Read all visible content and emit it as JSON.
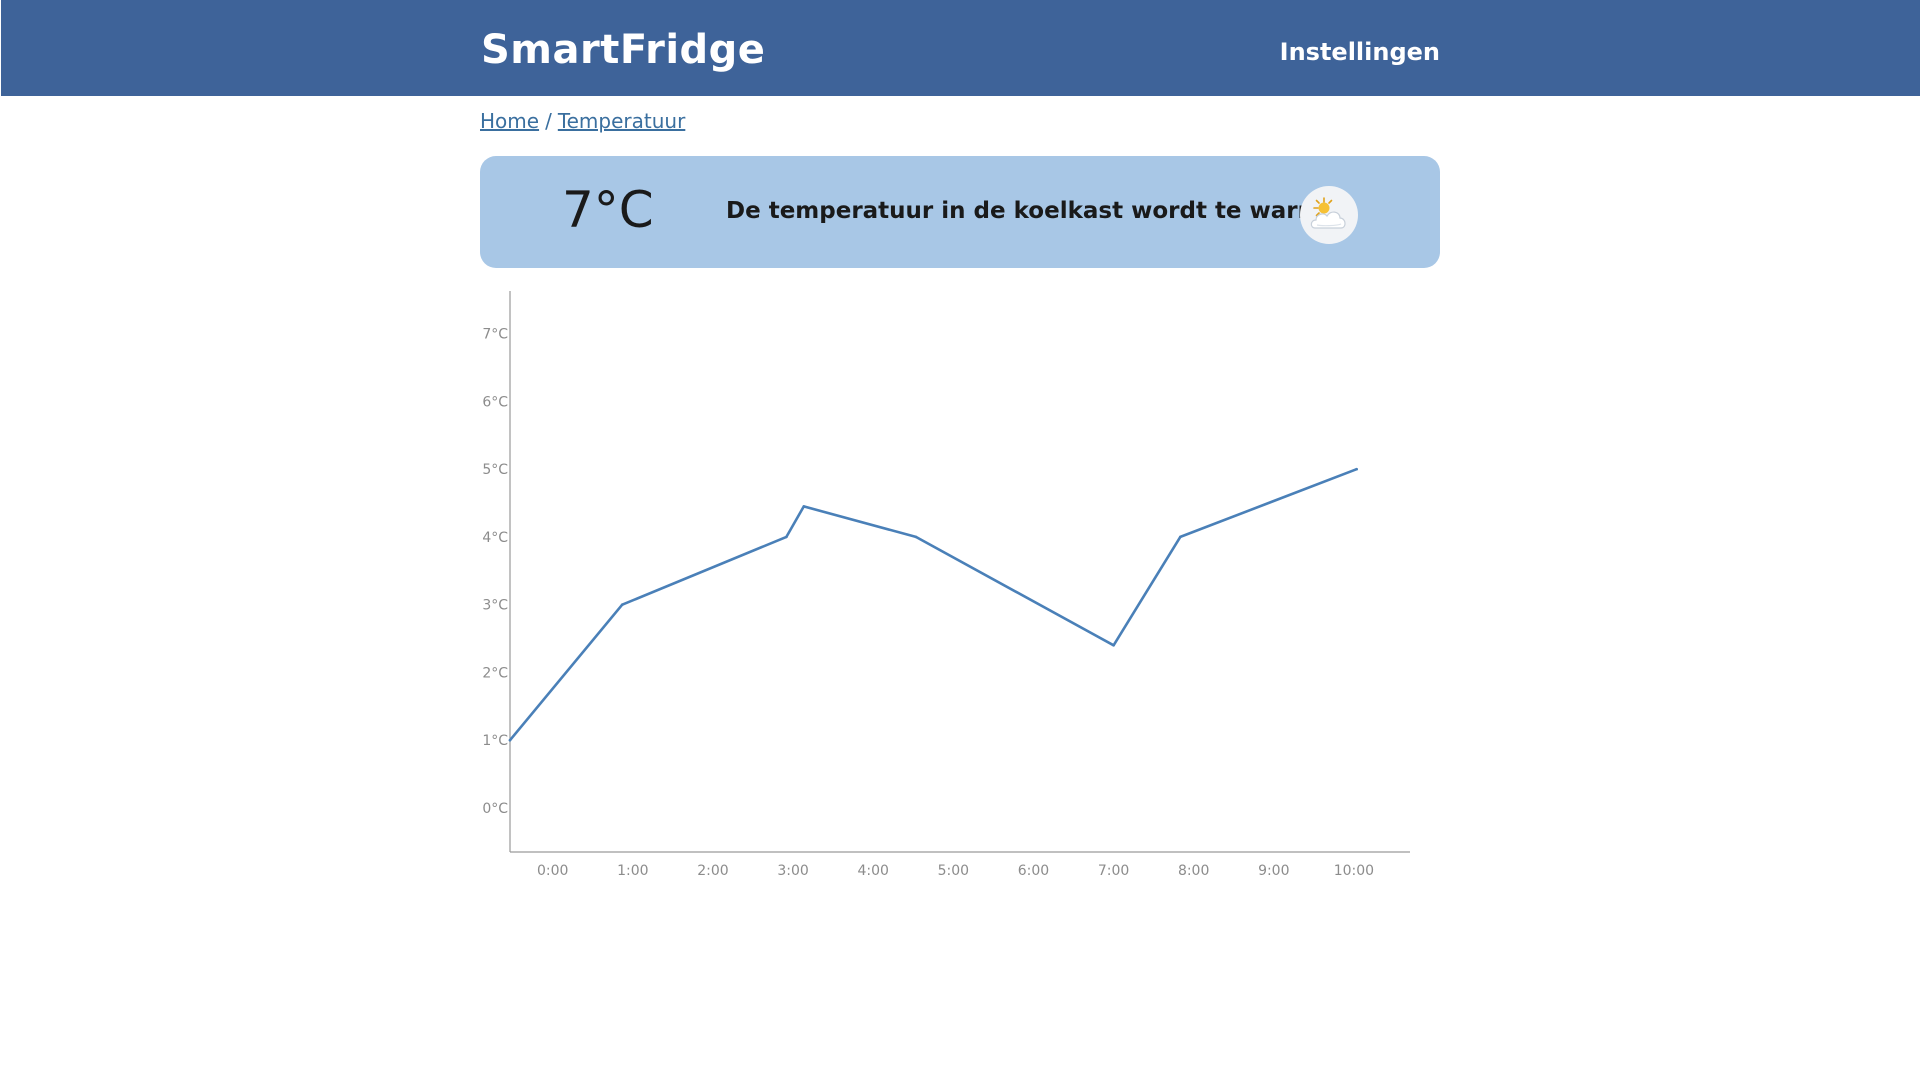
{
  "header": {
    "brand": "SmartFridge",
    "settings_label": "Instellingen"
  },
  "breadcrumb": {
    "items": [
      "Home",
      "Temperatuur"
    ],
    "separator": "/"
  },
  "alert": {
    "temperature": "7°C",
    "message": "De temperatuur in de koelkast wordt te warm!",
    "icon": "sun-behind-cloud-icon"
  },
  "colors": {
    "header": "#3e6399",
    "alert_background": "#a8c7e6",
    "line": "#4a80b8"
  },
  "chart_data": {
    "type": "line",
    "title": "",
    "xlabel": "",
    "ylabel": "",
    "categories": [
      "0:00",
      "1:00",
      "2:00",
      "3:00",
      "4:00",
      "5:00",
      "6:00",
      "7:00",
      "8:00",
      "9:00",
      "10:00"
    ],
    "yticks": [
      "0°C",
      "1°C",
      "2°C",
      "3°C",
      "4°C",
      "5°C",
      "6°C",
      "7°C"
    ],
    "ylim": [
      -0.65,
      7.6
    ],
    "xlim": [
      "-0:32",
      "10:42"
    ],
    "grid": false,
    "series": [
      {
        "points": [
          {
            "x": "-0:32",
            "y": 1.0
          },
          {
            "x": "0:52",
            "y": 3.0
          },
          {
            "x": "2:55",
            "y": 4.0
          },
          {
            "x": "3:08",
            "y": 4.45
          },
          {
            "x": "4:32",
            "y": 4.0
          },
          {
            "x": "7:00",
            "y": 2.4
          },
          {
            "x": "7:50",
            "y": 4.0
          },
          {
            "x": "10:02",
            "y": 5.0
          }
        ]
      }
    ]
  }
}
